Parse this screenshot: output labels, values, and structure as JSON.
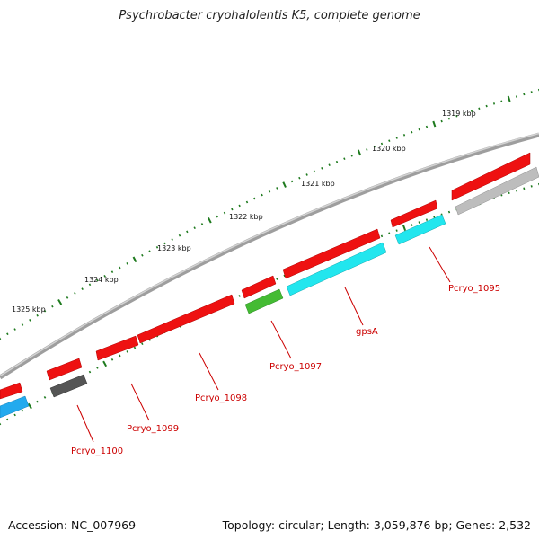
{
  "title": "Psychrobacter cryohalolentis K5, complete genome",
  "footer": {
    "accession": "Accession: NC_007969",
    "summary": "Topology: circular; Length: 3,059,876 bp; Genes: 2,532"
  },
  "colors": {
    "backbone": "#7a7a7a",
    "ticks": "#1e7a1e",
    "label": "#cc0000",
    "cds_red": "#ee1111",
    "cyan": "#22e6ee",
    "blue": "#22aaee",
    "green": "#44bb33",
    "dark_gray": "#555555",
    "light_gray": "#bdbdbd"
  },
  "tick_labels": [
    {
      "text": "1319 kbp",
      "kbp": 1319
    },
    {
      "text": "1320 kbp",
      "kbp": 1320
    },
    {
      "text": "1321 kbp",
      "kbp": 1321
    },
    {
      "text": "1322 kbp",
      "kbp": 1322
    },
    {
      "text": "1323 kbp",
      "kbp": 1323
    },
    {
      "text": "1324 kbp",
      "kbp": 1324
    },
    {
      "text": "1325 kbp",
      "kbp": 1325
    }
  ],
  "gene_labels": [
    {
      "text": "Pcryo_1095"
    },
    {
      "text": "gpsA"
    },
    {
      "text": "Pcryo_1097"
    },
    {
      "text": "Pcryo_1098"
    },
    {
      "text": "Pcryo_1099"
    },
    {
      "text": "Pcryo_1100"
    }
  ]
}
